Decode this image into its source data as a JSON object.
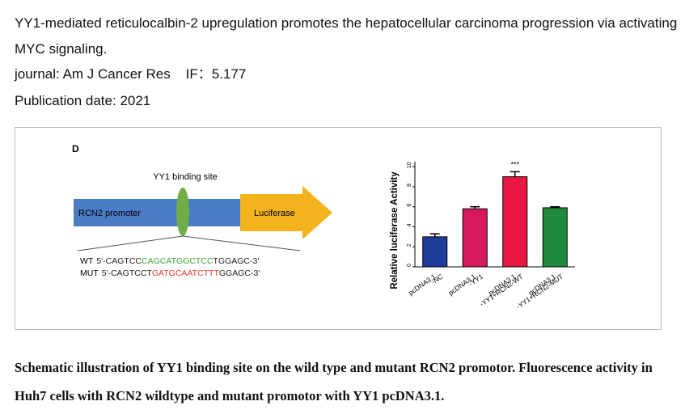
{
  "header": {
    "title": "YY1-mediated reticulocalbin-2 upregulation promotes the hepatocellular carcinoma progression via activating MYC signaling.",
    "journal_label": "journal:",
    "journal": "Am J Cancer Res",
    "if_label": "IF：",
    "if": "5.177",
    "date_label": "Publication date:",
    "date": "2021"
  },
  "figure": {
    "panel": "D",
    "binding_site": "YY1 binding site",
    "promoter": "RCN2 promoter",
    "reporter": "Luciferase",
    "sequences": [
      {
        "label": "WT",
        "segments": [
          {
            "text": "5'-CAGTCC",
            "color": "#222222"
          },
          {
            "text": "CAGCATGGCTCC",
            "color": "#3aa63a"
          },
          {
            "text": "TGGAGC-3'",
            "color": "#222222"
          }
        ]
      },
      {
        "label": "MUT",
        "segments": [
          {
            "text": "5'-CAGTCCT",
            "color": "#222222"
          },
          {
            "text": "GATGCAATCTTT",
            "color": "#e53935"
          },
          {
            "text": "GGAGC-3'",
            "color": "#222222"
          }
        ]
      }
    ],
    "chart": {
      "type": "bar",
      "ylabel": "Relative luciferase Activity",
      "categories": [
        [
          "pcDNA3.1",
          "-NC"
        ],
        [
          "pcDNA3.1",
          "-YY1"
        ],
        [
          "pcDNA3.1",
          "-YY1+RCN2-WT"
        ],
        [
          "pcDNA3.1",
          "-YY1+RCN2-MUT"
        ]
      ],
      "values": [
        3.0,
        5.8,
        9.0,
        5.9
      ],
      "errors": [
        0.3,
        0.2,
        0.5,
        0.1
      ],
      "colors": [
        "#1c3d9a",
        "#d6185f",
        "#e8173f",
        "#1f8a3c"
      ],
      "annotation": {
        "index": 2,
        "text": "***"
      },
      "ylim": [
        0,
        10.5
      ],
      "yticks": [
        0,
        2,
        4,
        6,
        8,
        10
      ]
    }
  },
  "caption": "Schematic illustration of YY1 binding site on the wild type and mutant RCN2 promotor. Fluorescence activity in Huh7 cells with RCN2 wildtype and mutant promotor with YY1 pcDNA3.1."
}
